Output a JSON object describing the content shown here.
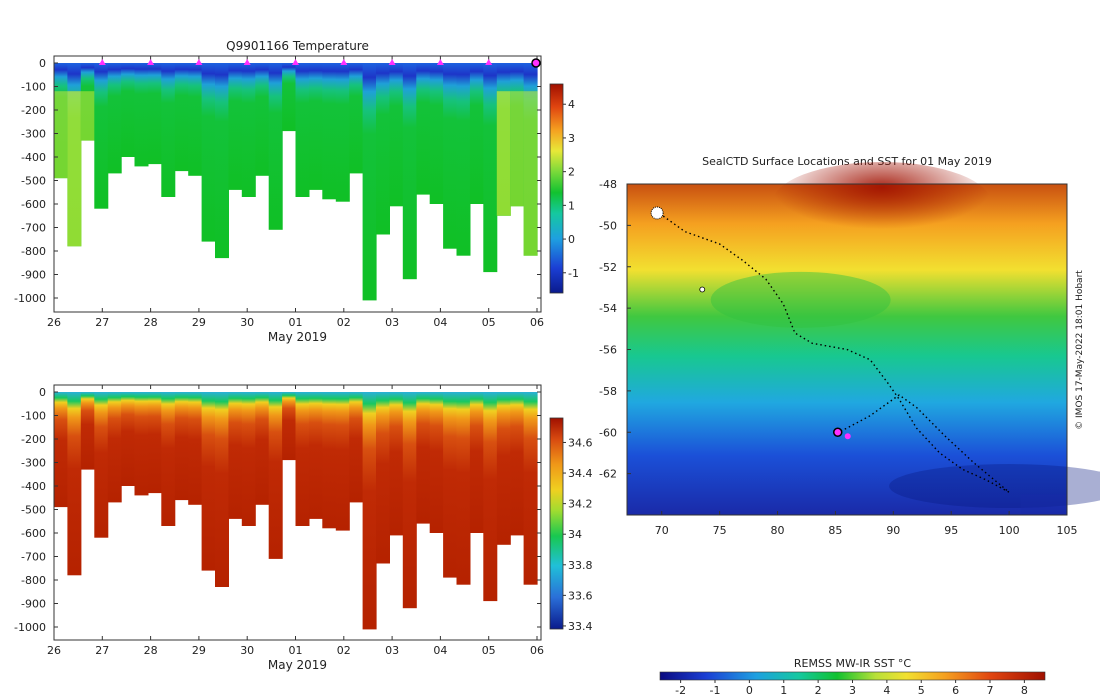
{
  "chart_data": [
    {
      "type": "heatmap",
      "title": "Q9901166  Temperature",
      "xlabel": "May 2019",
      "ylabel": "",
      "x_ticks": [
        "26",
        "27",
        "28",
        "29",
        "30",
        "01",
        "02",
        "03",
        "04",
        "05",
        "06"
      ],
      "y_ticks": [
        "0",
        "-100",
        "-200",
        "-300",
        "-400",
        "-500",
        "-600",
        "-700",
        "-800",
        "-900",
        "-1000"
      ],
      "ylim": [
        -1080,
        20
      ],
      "colorbar": {
        "ticks": [
          "-1",
          "0",
          "1",
          "2",
          "3",
          "4"
        ],
        "range": [
          -1.6,
          4.6
        ]
      },
      "profile_depths_m": [
        490,
        780,
        330,
        620,
        470,
        400,
        440,
        430,
        570,
        460,
        480,
        760,
        830,
        540,
        570,
        480,
        710,
        290,
        570,
        540,
        580,
        590,
        470,
        1010,
        730,
        610,
        920,
        560,
        600,
        790,
        820,
        600,
        890,
        650,
        610,
        820
      ],
      "surface_markers": [
        "27",
        "28",
        "29",
        "30",
        "01",
        "02",
        "03",
        "04",
        "05"
      ],
      "colors": {
        "cold": "#1b3fd4",
        "mid": "#11c230",
        "warm": "#c8e83a"
      }
    },
    {
      "type": "heatmap",
      "title": "",
      "xlabel": "May 2019",
      "ylabel": "",
      "x_ticks": [
        "26",
        "27",
        "28",
        "29",
        "30",
        "01",
        "02",
        "03",
        "04",
        "05",
        "06"
      ],
      "y_ticks": [
        "0",
        "-100",
        "-200",
        "-300",
        "-400",
        "-500",
        "-600",
        "-700",
        "-800",
        "-900",
        "-1000"
      ],
      "ylim": [
        -1080,
        20
      ],
      "colorbar": {
        "ticks": [
          "33.4",
          "33.6",
          "33.8",
          "34",
          "34.2",
          "34.4",
          "34.6"
        ],
        "range": [
          33.38,
          34.76
        ]
      },
      "profile_depths_m": [
        490,
        780,
        330,
        620,
        470,
        400,
        440,
        430,
        570,
        460,
        480,
        760,
        830,
        540,
        570,
        480,
        710,
        290,
        570,
        540,
        580,
        590,
        470,
        1010,
        730,
        610,
        920,
        560,
        600,
        790,
        820,
        600,
        890,
        650,
        610,
        820
      ],
      "colors": {
        "fresh": "#2a6fd8",
        "mid": "#f0c020",
        "salty": "#b52200"
      }
    },
    {
      "type": "heatmap",
      "title": "SealCTD Surface Locations and SST for 01 May 2019",
      "xlabel": "",
      "ylabel": "",
      "x_ticks": [
        "70",
        "75",
        "80",
        "85",
        "90",
        "95",
        "100",
        "105"
      ],
      "y_ticks": [
        "-48",
        "-50",
        "-52",
        "-54",
        "-56",
        "-58",
        "-60",
        "-62"
      ],
      "xlim": [
        67,
        105
      ],
      "ylim": [
        -64,
        -48
      ],
      "colorbar_label": "REMSS MW-IR SST °C",
      "colorbar_ticks": [
        "-2",
        "-1",
        "0",
        "1",
        "2",
        "3",
        "4",
        "5",
        "6",
        "7",
        "8"
      ],
      "colorbar_range": [
        -2.6,
        8.6
      ],
      "track": [
        [
          69.5,
          -49.3
        ],
        [
          72,
          -50.3
        ],
        [
          75,
          -50.9
        ],
        [
          77,
          -51.7
        ],
        [
          79,
          -52.6
        ],
        [
          80.5,
          -53.8
        ],
        [
          81.5,
          -55.2
        ],
        [
          83,
          -55.7
        ],
        [
          86,
          -56
        ],
        [
          88,
          -56.5
        ],
        [
          89.5,
          -57.6
        ],
        [
          90.5,
          -58.4
        ],
        [
          92,
          -59.8
        ],
        [
          94,
          -61
        ],
        [
          96,
          -61.8
        ],
        [
          98,
          -62.3
        ],
        [
          100,
          -62.9
        ],
        [
          97,
          -61.5
        ],
        [
          94.5,
          -60.2
        ],
        [
          92,
          -58.8
        ],
        [
          90.5,
          -58.2
        ],
        [
          88,
          -59.2
        ],
        [
          86,
          -59.8
        ],
        [
          85.2,
          -60
        ]
      ],
      "current_position": [
        85.2,
        -60
      ],
      "watermark": "© IMOS 17-May-2022 18:01 Hobart"
    }
  ]
}
